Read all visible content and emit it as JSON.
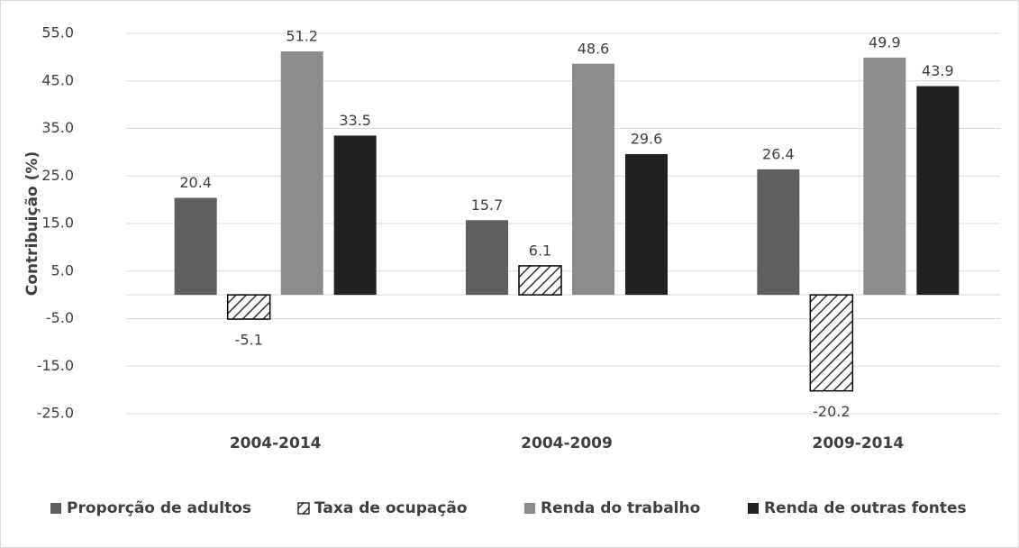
{
  "chart_data": {
    "type": "bar",
    "y_label": "Contribuição (%)",
    "categories": [
      "2004-2014",
      "2004-2009",
      "2009-2014"
    ],
    "series": [
      {
        "name": "Proporção de adultos",
        "color": "#5f5f5f",
        "values": [
          20.4,
          15.7,
          26.4
        ]
      },
      {
        "name": "Taxa de ocupação",
        "color": "#333333",
        "pattern": "hatch",
        "values": [
          -5.1,
          6.1,
          -20.2
        ]
      },
      {
        "name": "Renda do trabalho",
        "color": "#8c8c8c",
        "values": [
          51.2,
          48.6,
          49.9
        ]
      },
      {
        "name": "Renda de outras fontes",
        "color": "#222222",
        "values": [
          33.5,
          29.6,
          43.9
        ]
      }
    ],
    "ylim": [
      -25,
      55
    ],
    "yticks": [
      {
        "value": -25,
        "label": "-25.0"
      },
      {
        "value": -15,
        "label": "-15.0"
      },
      {
        "value": -5,
        "label": "-5.0"
      },
      {
        "value": 5,
        "label": "5.0"
      },
      {
        "value": 15,
        "label": "15.0"
      },
      {
        "value": 25,
        "label": "25.0"
      },
      {
        "value": 35,
        "label": "35.0"
      },
      {
        "value": 45,
        "label": "45.0"
      },
      {
        "value": 55,
        "label": "55.0"
      }
    ],
    "grid": true,
    "legend": "bottom"
  }
}
